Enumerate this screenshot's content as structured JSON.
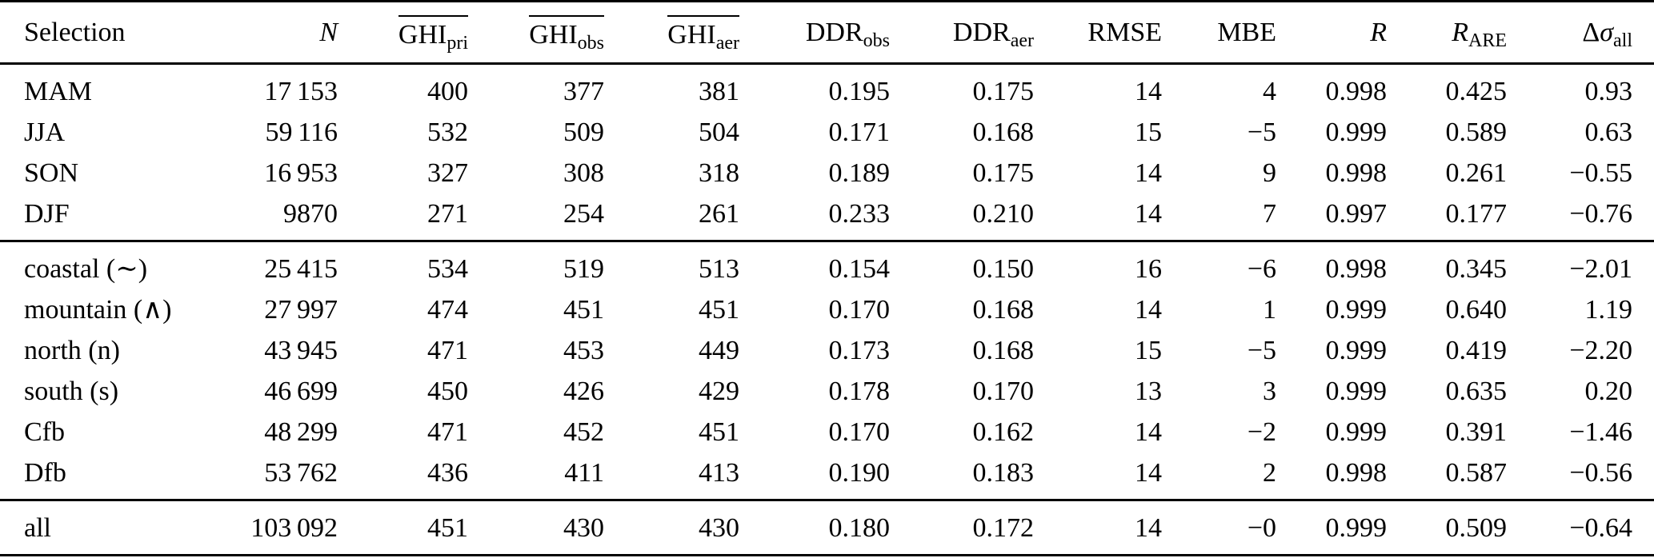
{
  "accent_colors": {
    "text": "#000000",
    "background": "#ffffff",
    "rule": "#000000"
  },
  "table": {
    "columns": [
      {
        "key": "selection",
        "label": "Selection",
        "sub": "",
        "italic": false,
        "overline": false
      },
      {
        "key": "n",
        "label": "N",
        "sub": "",
        "italic": true,
        "overline": false
      },
      {
        "key": "ghi_pri",
        "label": "GHI",
        "sub": "pri",
        "italic": false,
        "overline": true
      },
      {
        "key": "ghi_obs",
        "label": "GHI",
        "sub": "obs",
        "italic": false,
        "overline": true
      },
      {
        "key": "ghi_aer",
        "label": "GHI",
        "sub": "aer",
        "italic": false,
        "overline": true
      },
      {
        "key": "ddr_obs",
        "label": "DDR",
        "sub": "obs",
        "italic": false,
        "overline": false
      },
      {
        "key": "ddr_aer",
        "label": "DDR",
        "sub": "aer",
        "italic": false,
        "overline": false
      },
      {
        "key": "rmse",
        "label": "RMSE",
        "sub": "",
        "italic": false,
        "overline": false
      },
      {
        "key": "mbe",
        "label": "MBE",
        "sub": "",
        "italic": false,
        "overline": false
      },
      {
        "key": "r",
        "label": "R",
        "sub": "",
        "italic": true,
        "overline": false
      },
      {
        "key": "r_are",
        "label": "R",
        "sub": "ARE",
        "italic": true,
        "overline": false
      },
      {
        "key": "delta_sigma",
        "label": "Δ",
        "label2": "σ",
        "sub": "all",
        "italic": false,
        "overline": false
      }
    ],
    "groups": [
      {
        "rows": [
          {
            "cells": [
              "MAM",
              "17 153",
              "400",
              "377",
              "381",
              "0.195",
              "0.175",
              "14",
              "4",
              "0.998",
              "0.425",
              "0.93"
            ]
          },
          {
            "cells": [
              "JJA",
              "59 116",
              "532",
              "509",
              "504",
              "0.171",
              "0.168",
              "15",
              "−5",
              "0.999",
              "0.589",
              "0.63"
            ]
          },
          {
            "cells": [
              "SON",
              "16 953",
              "327",
              "308",
              "318",
              "0.189",
              "0.175",
              "14",
              "9",
              "0.998",
              "0.261",
              "−0.55"
            ]
          },
          {
            "cells": [
              "DJF",
              "9870",
              "271",
              "254",
              "261",
              "0.233",
              "0.210",
              "14",
              "7",
              "0.997",
              "0.177",
              "−0.76"
            ]
          }
        ]
      },
      {
        "rows": [
          {
            "cells": [
              "coastal (∼)",
              "25 415",
              "534",
              "519",
              "513",
              "0.154",
              "0.150",
              "16",
              "−6",
              "0.998",
              "0.345",
              "−2.01"
            ]
          },
          {
            "cells": [
              "mountain (∧)",
              "27 997",
              "474",
              "451",
              "451",
              "0.170",
              "0.168",
              "14",
              "1",
              "0.999",
              "0.640",
              "1.19"
            ]
          },
          {
            "cells": [
              "north (n)",
              "43 945",
              "471",
              "453",
              "449",
              "0.173",
              "0.168",
              "15",
              "−5",
              "0.999",
              "0.419",
              "−2.20"
            ]
          },
          {
            "cells": [
              "south (s)",
              "46 699",
              "450",
              "426",
              "429",
              "0.178",
              "0.170",
              "13",
              "3",
              "0.999",
              "0.635",
              "0.20"
            ]
          },
          {
            "cells": [
              "Cfb",
              "48 299",
              "471",
              "452",
              "451",
              "0.170",
              "0.162",
              "14",
              "−2",
              "0.999",
              "0.391",
              "−1.46"
            ]
          },
          {
            "cells": [
              "Dfb",
              "53 762",
              "436",
              "411",
              "413",
              "0.190",
              "0.183",
              "14",
              "2",
              "0.998",
              "0.587",
              "−0.56"
            ]
          }
        ]
      },
      {
        "rows": [
          {
            "cells": [
              "all",
              "103 092",
              "451",
              "430",
              "430",
              "0.180",
              "0.172",
              "14",
              "−0",
              "0.999",
              "0.509",
              "−0.64"
            ]
          }
        ]
      }
    ]
  }
}
